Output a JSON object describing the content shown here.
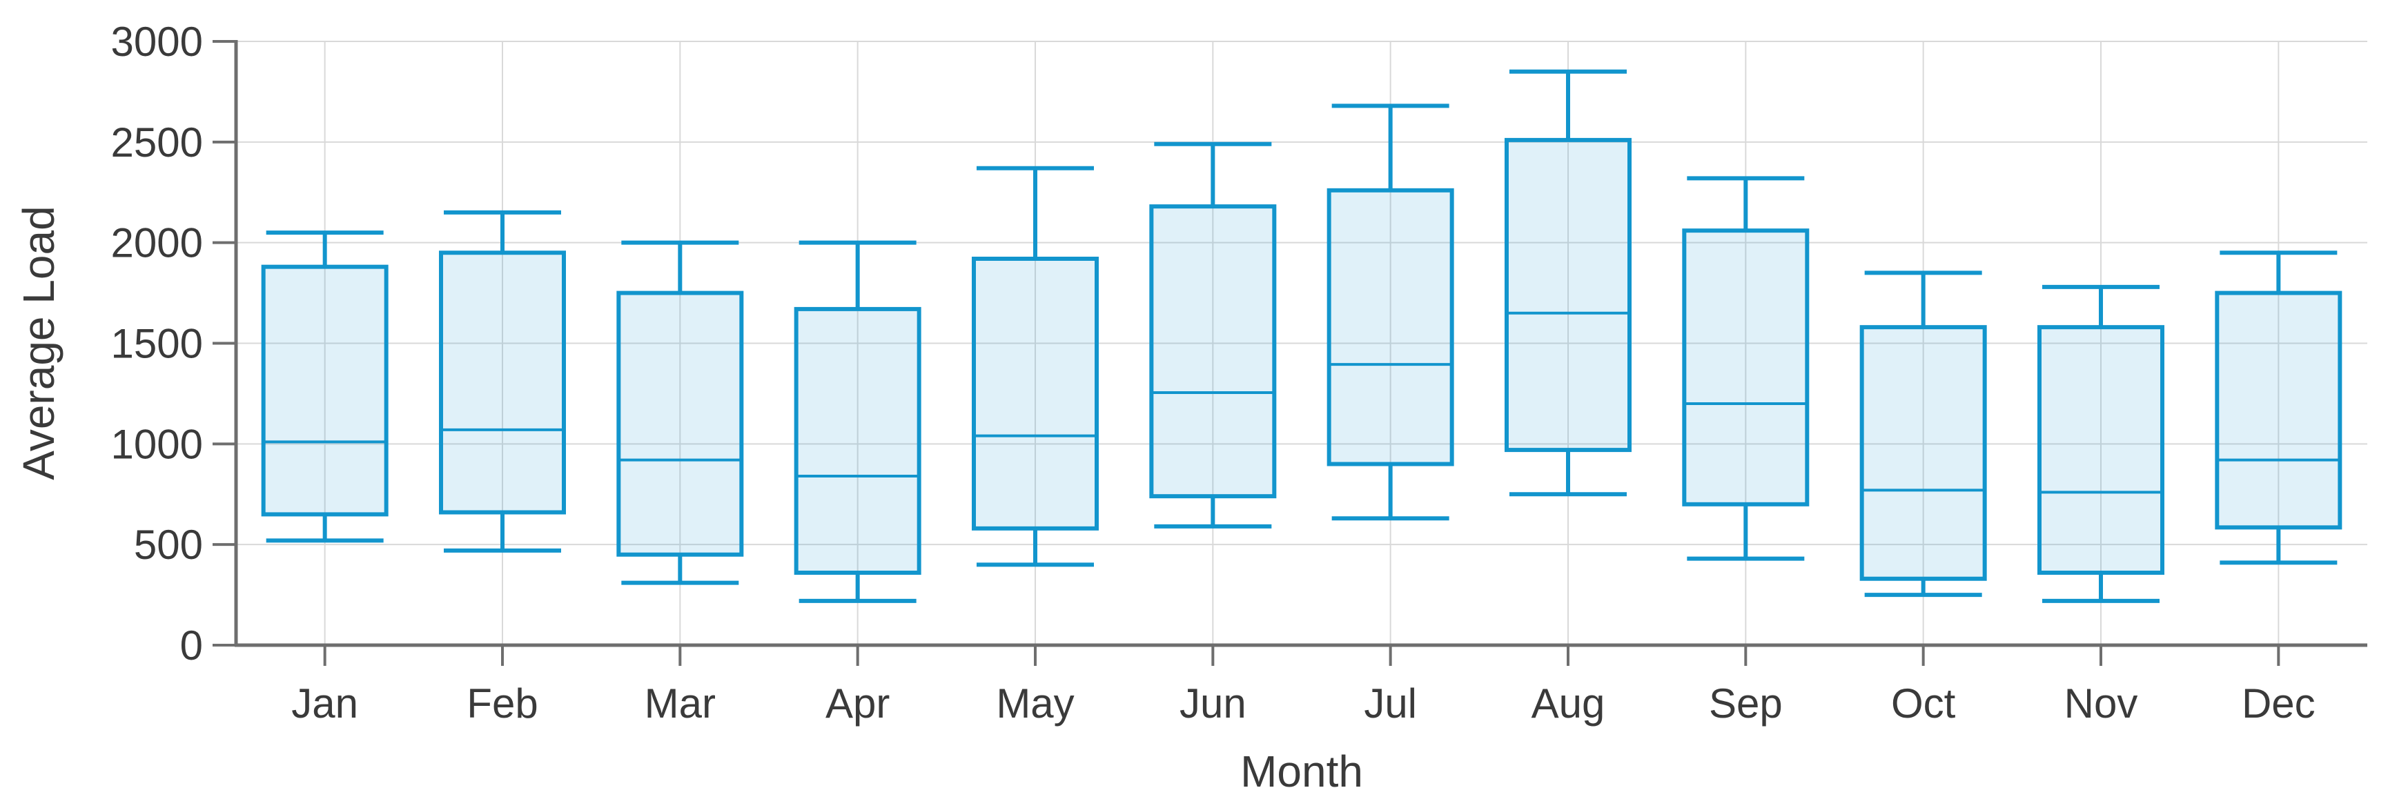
{
  "chart_data": {
    "type": "box",
    "title": "",
    "xlabel": "Month",
    "ylabel": "Average Load",
    "ylim": [
      0,
      3000
    ],
    "ytick_step": 500,
    "grid": true,
    "legend": "none",
    "categories": [
      "Jan",
      "Feb",
      "Mar",
      "Apr",
      "May",
      "Jun",
      "Jul",
      "Aug",
      "Sep",
      "Oct",
      "Nov",
      "Dec"
    ],
    "boxes": [
      {
        "label": "Jan",
        "min": 520,
        "q1": 650,
        "median": 1010,
        "q3": 1880,
        "max": 2050
      },
      {
        "label": "Feb",
        "min": 470,
        "q1": 660,
        "median": 1070,
        "q3": 1950,
        "max": 2150
      },
      {
        "label": "Mar",
        "min": 310,
        "q1": 450,
        "median": 920,
        "q3": 1750,
        "max": 2000
      },
      {
        "label": "Apr",
        "min": 220,
        "q1": 360,
        "median": 840,
        "q3": 1670,
        "max": 2000
      },
      {
        "label": "May",
        "min": 400,
        "q1": 580,
        "median": 1040,
        "q3": 1920,
        "max": 2370
      },
      {
        "label": "Jun",
        "min": 590,
        "q1": 740,
        "median": 1255,
        "q3": 2180,
        "max": 2490
      },
      {
        "label": "Jul",
        "min": 630,
        "q1": 900,
        "median": 1395,
        "q3": 2260,
        "max": 2680
      },
      {
        "label": "Aug",
        "min": 750,
        "q1": 970,
        "median": 1650,
        "q3": 2510,
        "max": 2850
      },
      {
        "label": "Sep",
        "min": 430,
        "q1": 700,
        "median": 1200,
        "q3": 2060,
        "max": 2320
      },
      {
        "label": "Oct",
        "min": 250,
        "q1": 330,
        "median": 770,
        "q3": 1580,
        "max": 1850
      },
      {
        "label": "Nov",
        "min": 220,
        "q1": 360,
        "median": 760,
        "q3": 1580,
        "max": 1780
      },
      {
        "label": "Dec",
        "min": 410,
        "q1": 585,
        "median": 920,
        "q3": 1750,
        "max": 1950
      }
    ],
    "colors": {
      "box_stroke": "#1295cd",
      "box_fill": "rgba(18,149,205,0.13)",
      "gridline": "#d9d9d9",
      "axis_line": "#6e6e6e",
      "tick_text": "#3a3a3a"
    }
  }
}
